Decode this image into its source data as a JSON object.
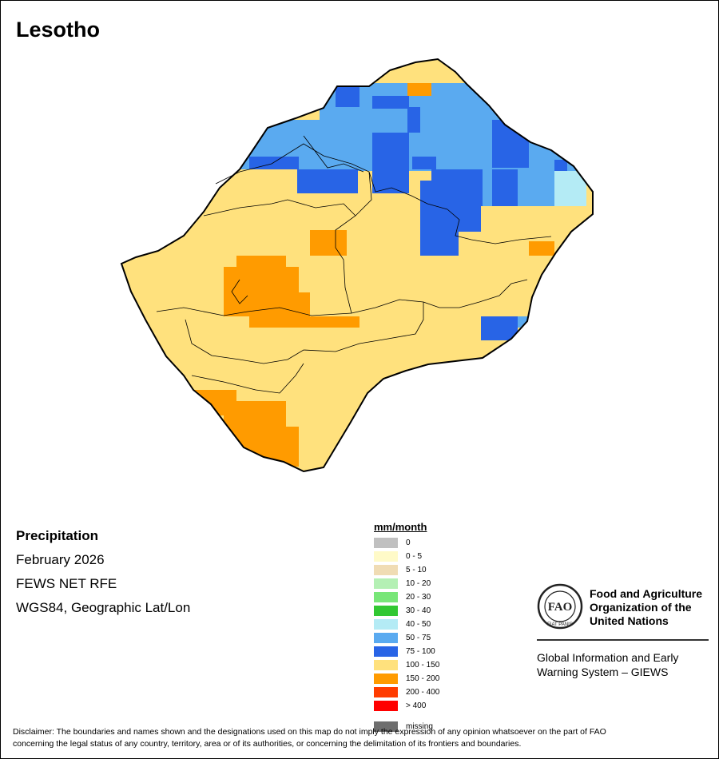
{
  "title": "Lesotho",
  "info": {
    "variable": "Precipitation",
    "period": "February 2026",
    "source": "FEWS NET RFE",
    "projection": "WGS84, Geographic Lat/Lon"
  },
  "legend": {
    "unit": "mm/month",
    "classes": [
      {
        "label": "0",
        "color": "#c0c0c0"
      },
      {
        "label": "0 - 5",
        "color": "#fffac8"
      },
      {
        "label": "5 - 10",
        "color": "#f0dcb4"
      },
      {
        "label": "10 - 20",
        "color": "#b4f0b4"
      },
      {
        "label": "20 - 30",
        "color": "#78e678"
      },
      {
        "label": "30 - 40",
        "color": "#32c832"
      },
      {
        "label": "40 - 50",
        "color": "#b4ebf5"
      },
      {
        "label": "50 - 75",
        "color": "#5aaaf0"
      },
      {
        "label": "75 - 100",
        "color": "#2864e6"
      },
      {
        "label": "100 - 150",
        "color": "#ffe17d"
      },
      {
        "label": "150 - 200",
        "color": "#ff9b00"
      },
      {
        "label": "200 - 400",
        "color": "#ff3c00"
      },
      {
        "label": "> 400",
        "color": "#ff0000"
      }
    ],
    "missing": {
      "label": "missing",
      "color": "#6e6e6e"
    }
  },
  "org": {
    "name_line1": "Food and Agriculture",
    "name_line2": "Organization of the",
    "name_line3": "United Nations",
    "logo_text": "FAO",
    "motto": "FIAT PANIS",
    "system_line1": "Global Information and Early",
    "system_line2": "Warning System – GIEWS"
  },
  "disclaimer_line1": "Disclaimer: The boundaries and names shown and the designations used on this map do not imply the expression of any opinion whatsoever on the part of FAO",
  "disclaimer_line2": "concerning the legal status of any country, territory, area or of its authorities, or concerning the delimitation of its frontiers and boundaries."
}
